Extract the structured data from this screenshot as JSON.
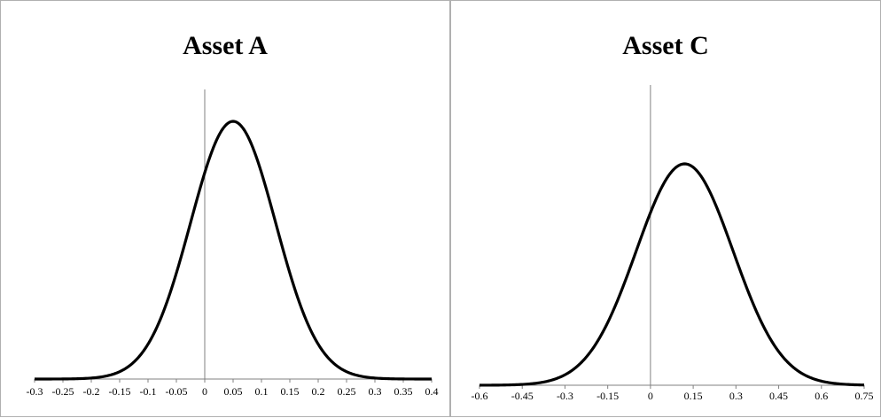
{
  "chart_data": [
    {
      "type": "line",
      "title": "Asset A",
      "xlabel": "",
      "ylabel": "",
      "distribution": "normal",
      "mean": 0.05,
      "stdev": 0.075,
      "xlim": [
        -0.3,
        0.4
      ],
      "xticks": [
        -0.3,
        -0.25,
        -0.2,
        -0.15,
        -0.1,
        -0.05,
        0,
        0.05,
        0.1,
        0.15,
        0.2,
        0.25,
        0.3,
        0.35,
        0.4
      ],
      "xtick_labels": [
        "-0.3",
        "-0.25",
        "-0.2",
        "-0.15",
        "-0.1",
        "-0.05",
        "0",
        "0.05",
        "0.1",
        "0.15",
        "0.2",
        "0.25",
        "0.3",
        "0.35",
        "0.4"
      ],
      "grid": false,
      "legend": "none",
      "line_color": "#000000"
    },
    {
      "type": "line",
      "title": "Asset C",
      "xlabel": "",
      "ylabel": "",
      "distribution": "normal",
      "mean": 0.12,
      "stdev": 0.17,
      "xlim": [
        -0.6,
        0.75
      ],
      "xticks": [
        -0.6,
        -0.45,
        -0.3,
        -0.15,
        0,
        0.15,
        0.3,
        0.45,
        0.6,
        0.75
      ],
      "xtick_labels": [
        "-0.6",
        "-0.45",
        "-0.3",
        "-0.15",
        "0",
        "0.15",
        "0.3",
        "0.45",
        "0.6",
        "0.75"
      ],
      "grid": false,
      "legend": "none",
      "line_color": "#000000"
    }
  ]
}
